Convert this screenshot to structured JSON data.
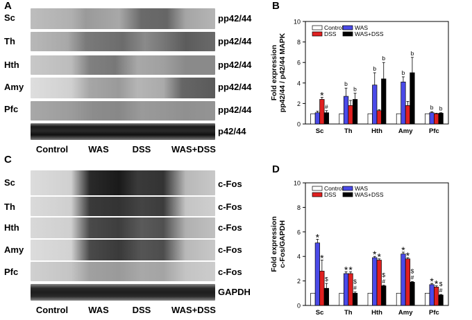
{
  "panelA": {
    "label": "A",
    "regions": [
      "Sc",
      "Th",
      "Hth",
      "Amy",
      "Pfc"
    ],
    "bands": [
      "pp42/44",
      "pp42/44",
      "pp42/44",
      "pp42/44",
      "pp42/44",
      "p42/44"
    ],
    "lanes": [
      "Control",
      "WAS",
      "DSS",
      "WAS+DSS"
    ]
  },
  "panelC": {
    "label": "C",
    "regions": [
      "Sc",
      "Th",
      "Hth",
      "Amy",
      "Pfc"
    ],
    "bands": [
      "c-Fos",
      "c-Fos",
      "c-Fos",
      "c-Fos",
      "c-Fos",
      "GAPDH"
    ],
    "lanes": [
      "Control",
      "WAS",
      "DSS",
      "WAS+DSS"
    ]
  },
  "chart_data": [
    {
      "panel": "B",
      "type": "bar",
      "ylabel": "Fold expression pp42/44 / p42/44 MAPK",
      "ylabel_lines": [
        "Fold expression",
        "pp42/44 / p42/44 MAPK"
      ],
      "ylim": [
        0,
        10
      ],
      "yticks": [
        "0",
        "2",
        "4",
        "6",
        "8",
        "10"
      ],
      "categories": [
        "Sc",
        "Th",
        "Hth",
        "Amy",
        "Pfc"
      ],
      "legend_position": "top-left",
      "series": [
        {
          "name": "Control",
          "color": "#ffffff",
          "values": [
            1.0,
            1.0,
            1.0,
            1.0,
            1.0
          ],
          "errors": [
            0,
            0,
            0,
            0,
            0
          ]
        },
        {
          "name": "WAS",
          "color": "#4a4ae8",
          "values": [
            1.1,
            2.7,
            3.8,
            4.1,
            1.1
          ],
          "errors": [
            0.15,
            0.8,
            1.2,
            0.5,
            0.1
          ]
        },
        {
          "name": "DSS",
          "color": "#e02020",
          "values": [
            2.4,
            1.8,
            1.3,
            1.8,
            1.0
          ],
          "errors": [
            0.2,
            0.5,
            0.1,
            0.4,
            0.05
          ]
        },
        {
          "name": "WAS+DSS",
          "color": "#000000",
          "values": [
            1.1,
            2.4,
            4.4,
            5.0,
            1.05
          ],
          "errors": [
            0.2,
            0.6,
            1.6,
            1.5,
            0.05
          ]
        }
      ],
      "annotations": [
        {
          "category": "Sc",
          "series": "DSS",
          "text": "*"
        },
        {
          "category": "Sc",
          "series": "WAS+DSS",
          "text": "#"
        },
        {
          "category": "Th",
          "series": "WAS",
          "text": "b"
        },
        {
          "category": "Th",
          "series": "WAS+DSS",
          "text": "b"
        },
        {
          "category": "Hth",
          "series": "WAS",
          "text": "b"
        },
        {
          "category": "Hth",
          "series": "WAS+DSS",
          "text": "b"
        },
        {
          "category": "Amy",
          "series": "WAS",
          "text": "b"
        },
        {
          "category": "Amy",
          "series": "WAS+DSS",
          "text": "b"
        },
        {
          "category": "Pfc",
          "series": "WAS",
          "text": "b"
        },
        {
          "category": "Pfc",
          "series": "WAS+DSS",
          "text": "b"
        }
      ]
    },
    {
      "panel": "D",
      "type": "bar",
      "ylabel": "Fold expression c-Fos/GAPDH",
      "ylabel_lines": [
        "Fold expression",
        "c-Fos/GAPDH"
      ],
      "ylim": [
        0,
        10
      ],
      "yticks": [
        "0",
        "2",
        "4",
        "6",
        "8",
        "10"
      ],
      "categories": [
        "Sc",
        "Th",
        "Hth",
        "Amy",
        "Pfc"
      ],
      "legend_position": "top-left",
      "series": [
        {
          "name": "Control",
          "color": "#ffffff",
          "values": [
            1.0,
            1.0,
            1.0,
            1.0,
            1.0
          ],
          "errors": [
            0,
            0,
            0,
            0,
            0
          ]
        },
        {
          "name": "WAS",
          "color": "#4a4ae8",
          "values": [
            5.1,
            2.6,
            3.9,
            4.2,
            1.7
          ],
          "errors": [
            0.3,
            0.15,
            0.1,
            0.15,
            0.1
          ]
        },
        {
          "name": "DSS",
          "color": "#e02020",
          "values": [
            2.8,
            2.6,
            3.7,
            3.8,
            1.5
          ],
          "errors": [
            0.9,
            0.15,
            0.1,
            0.1,
            0.1
          ]
        },
        {
          "name": "WAS+DSS",
          "color": "#000000",
          "values": [
            1.4,
            1.0,
            1.6,
            1.9,
            0.85
          ],
          "errors": [
            0.4,
            0.1,
            0.05,
            0.05,
            0.05
          ]
        }
      ],
      "annotations": [
        {
          "category": "Sc",
          "series": "WAS",
          "text": "*"
        },
        {
          "category": "Sc",
          "series": "DSS",
          "text": "*"
        },
        {
          "category": "Sc",
          "series": "WAS+DSS",
          "text": "$"
        },
        {
          "category": "Th",
          "series": "WAS",
          "text": "*"
        },
        {
          "category": "Th",
          "series": "DSS",
          "text": "*"
        },
        {
          "category": "Th",
          "series": "WAS+DSS",
          "text": "#"
        },
        {
          "category": "Th",
          "series": "WAS+DSS",
          "text": "$"
        },
        {
          "category": "Hth",
          "series": "WAS",
          "text": "*"
        },
        {
          "category": "Hth",
          "series": "DSS",
          "text": "*"
        },
        {
          "category": "Hth",
          "series": "WAS+DSS",
          "text": "#"
        },
        {
          "category": "Hth",
          "series": "WAS+DSS",
          "text": "$"
        },
        {
          "category": "Amy",
          "series": "WAS",
          "text": "*"
        },
        {
          "category": "Amy",
          "series": "DSS",
          "text": "*"
        },
        {
          "category": "Amy",
          "series": "WAS+DSS",
          "text": "#"
        },
        {
          "category": "Amy",
          "series": "WAS+DSS",
          "text": "$"
        },
        {
          "category": "Pfc",
          "series": "WAS",
          "text": "*"
        },
        {
          "category": "Pfc",
          "series": "DSS",
          "text": "*"
        },
        {
          "category": "Pfc",
          "series": "WAS+DSS",
          "text": "#"
        },
        {
          "category": "Pfc",
          "series": "WAS+DSS",
          "text": "$"
        }
      ]
    }
  ]
}
